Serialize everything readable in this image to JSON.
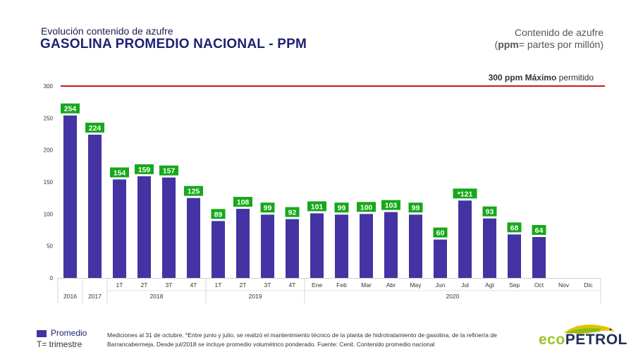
{
  "header": {
    "subtitle": "Evolución contenido de azufre",
    "title": "GASOLINA PROMEDIO NACIONAL - PPM",
    "unit_line1": "Contenido de azufre",
    "unit_line2_bold": "ppm",
    "unit_line2_rest": "= partes por millón"
  },
  "limit": {
    "value_text": "300 ppm",
    "bold_text": "Máximo",
    "rest_text": "permitido"
  },
  "legend": {
    "series_label": "Promedio",
    "trimester_label": "T= trimestre"
  },
  "footnote": "Mediciones al 31 de octubre. *Entre junio y julio, se realizó el mantenimiento técnico de la planta de hidrotratamiento de gasolina, de la refinería de Barrancabermeja. Desde jul/2018 se incluye promedio volumétrico ponderado. Fuente: Cenit. Contenido promedio nacional",
  "logo": {
    "part1": "eco",
    "part2": "PETROL"
  },
  "colors": {
    "bar": "#4333a3",
    "label_bg": "#16a81a",
    "limit_line": "#c8181e",
    "title": "#1d2270"
  },
  "chart_data": {
    "type": "bar",
    "title": "GASOLINA PROMEDIO NACIONAL - PPM",
    "categories": [
      "2016",
      "2017",
      "1T",
      "2T",
      "3T",
      "4T",
      "1T",
      "2T",
      "3T",
      "4T",
      "Ene",
      "Feb",
      "Mar",
      "Abr",
      "May",
      "Jun",
      "Jul",
      "Agt",
      "Sep",
      "Oct",
      "Nov",
      "Dic"
    ],
    "groups": [
      {
        "label": "2018",
        "start": 2,
        "end": 5
      },
      {
        "label": "2019",
        "start": 6,
        "end": 9
      },
      {
        "label": "2020",
        "start": 10,
        "end": 21
      }
    ],
    "series": [
      {
        "name": "Promedio",
        "values": [
          254,
          224,
          154,
          159,
          157,
          125,
          89,
          108,
          99,
          92,
          101,
          99,
          100,
          103,
          99,
          60,
          121,
          93,
          68,
          64,
          null,
          null
        ],
        "data_labels": [
          "254",
          "224",
          "154",
          "159",
          "157",
          "125",
          "89",
          "108",
          "99",
          "92",
          "101",
          "99",
          "100",
          "103",
          "99",
          "60",
          "*121",
          "93",
          "68",
          "64",
          "",
          ""
        ]
      }
    ],
    "y_ticks": [
      "0",
      "50",
      "100",
      "150",
      "200",
      "250",
      "300"
    ],
    "ylim": [
      0,
      300
    ],
    "reference_line": 300,
    "grid": false,
    "legend_position": "bottom-left"
  }
}
